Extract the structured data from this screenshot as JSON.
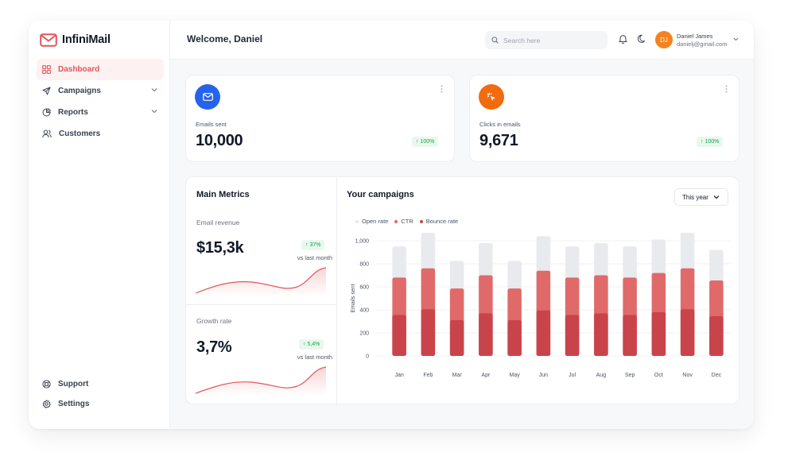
{
  "app": {
    "name": "InfiniMail"
  },
  "sidebar": {
    "items": [
      {
        "label": "Dashboard",
        "icon": "grid-icon",
        "active": true
      },
      {
        "label": "Campaigns",
        "icon": "send-icon",
        "expandable": true
      },
      {
        "label": "Reports",
        "icon": "pie-chart-icon",
        "expandable": true
      },
      {
        "label": "Customers",
        "icon": "users-icon"
      }
    ],
    "footer": [
      {
        "label": "Support",
        "icon": "lifebuoy-icon"
      },
      {
        "label": "Settings",
        "icon": "gear-icon"
      }
    ]
  },
  "header": {
    "welcome": "Welcome, Daniel",
    "search_placeholder": "Search here",
    "user": {
      "initials": "DJ",
      "name": "Daniel James",
      "email": "danielj@gmail.com"
    }
  },
  "stats": [
    {
      "label": "Emails sent",
      "value": "10,000",
      "change": "↑ 100%",
      "icon": "mail-icon",
      "color": "#2563eb"
    },
    {
      "label": "Clicks in emails",
      "value": "9,671",
      "change": "↑ 100%",
      "icon": "cursor-click-icon",
      "color": "#f26b0f"
    }
  ],
  "metrics": {
    "title": "Main Metrics",
    "email_revenue": {
      "label": "Email revenue",
      "value": "$15,3k",
      "change": "↑ 37%",
      "sub": "vs last month"
    },
    "growth_rate": {
      "label": "Growth rate",
      "value": "3,7%",
      "change": "↑ 5,4%",
      "sub": "vs last month"
    }
  },
  "campaigns": {
    "title": "Your campaigns",
    "period": "This year"
  },
  "colors": {
    "accent": "#e0575b",
    "open": "#e9eaee",
    "ctr": "#e06a6a",
    "bounce": "#c9444a"
  },
  "chart_data": {
    "type": "bar",
    "stacked": false,
    "categories": [
      "Jan",
      "Feb",
      "Mar",
      "Apr",
      "May",
      "Jun",
      "Jul",
      "Aug",
      "Sep",
      "Oct",
      "Nov",
      "Dec"
    ],
    "series": [
      {
        "name": "Open rate",
        "values": [
          950,
          1070,
          825,
          980,
          825,
          1040,
          950,
          980,
          950,
          1010,
          1070,
          920
        ],
        "color": "#e9eaee"
      },
      {
        "name": "CTR",
        "values": [
          680,
          760,
          585,
          700,
          585,
          740,
          680,
          700,
          680,
          720,
          760,
          655
        ],
        "color": "#e06a6a"
      },
      {
        "name": "Bounce rate",
        "values": [
          355,
          405,
          310,
          370,
          310,
          395,
          355,
          370,
          355,
          380,
          405,
          345
        ],
        "color": "#c9444a"
      }
    ],
    "ylabel": "Emails sent",
    "yticks": [
      "0",
      "200",
      "400",
      "600",
      "800",
      "1,000"
    ],
    "ylim": [
      0,
      1000
    ],
    "legend": "top-left",
    "grid": true
  }
}
